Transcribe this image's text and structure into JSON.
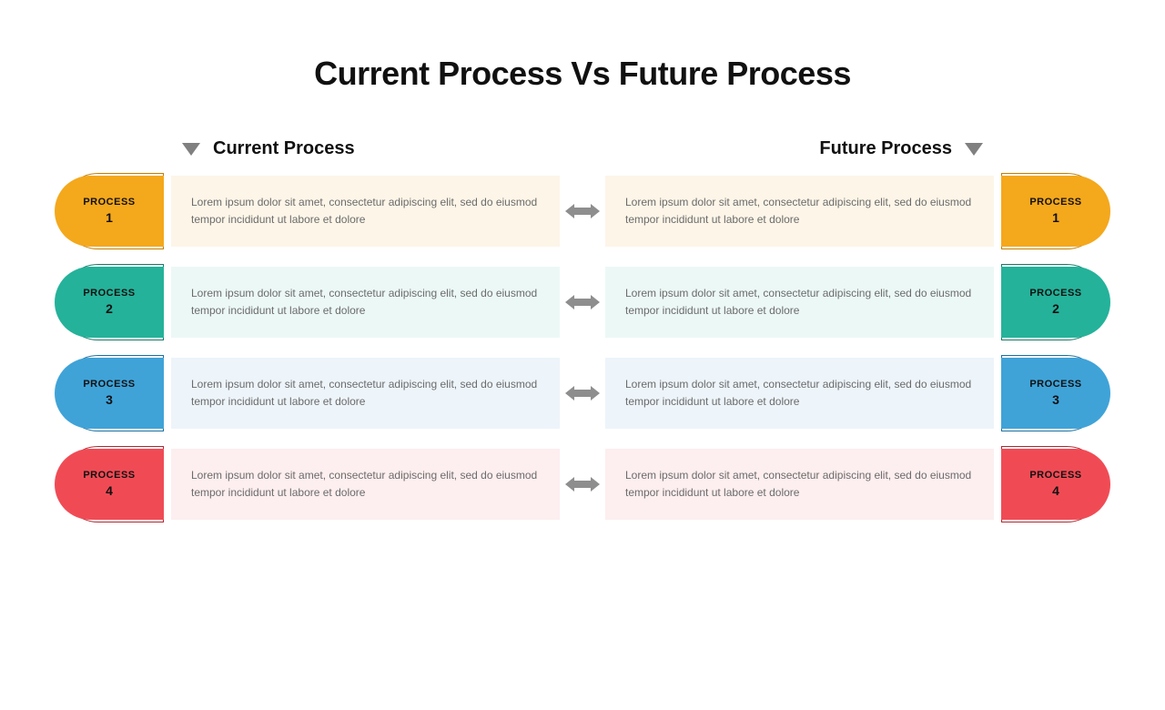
{
  "title": "Current Process Vs Future Process",
  "headers": {
    "left": "Current Process",
    "right": "Future Process"
  },
  "arrow_color": "#8e8e8e",
  "rows": [
    {
      "pill_label": "PROCESS",
      "pill_number": "1",
      "pill_color": "#f4a81c",
      "outline_color": "#c07f0a",
      "bg_tint": "#fdf5e8",
      "left_text": "Lorem ipsum dolor sit amet, consectetur adipiscing elit, sed do eiusmod tempor incididunt ut labore et dolore",
      "right_text": "Lorem ipsum dolor sit amet, consectetur adipiscing elit, sed do eiusmod tempor incididunt ut labore et dolore"
    },
    {
      "pill_label": "PROCESS",
      "pill_number": "2",
      "pill_color": "#24b29a",
      "outline_color": "#187a69",
      "bg_tint": "#ecf8f6",
      "left_text": "Lorem ipsum dolor sit amet, consectetur adipiscing elit, sed do eiusmod tempor incididunt ut labore et dolore",
      "right_text": "Lorem ipsum dolor sit amet, consectetur adipiscing elit, sed do eiusmod tempor incididunt ut labore et dolore"
    },
    {
      "pill_label": "PROCESS",
      "pill_number": "3",
      "pill_color": "#3fa3d8",
      "outline_color": "#1f6f9e",
      "bg_tint": "#edf4fa",
      "left_text": "Lorem ipsum dolor sit amet, consectetur adipiscing elit, sed do eiusmod tempor incididunt ut labore et dolore",
      "right_text": "Lorem ipsum dolor sit amet, consectetur adipiscing elit, sed do eiusmod tempor incididunt ut labore et dolore"
    },
    {
      "pill_label": "PROCESS",
      "pill_number": "4",
      "pill_color": "#f04b55",
      "outline_color": "#b02931",
      "bg_tint": "#fdeeef",
      "left_text": "Lorem ipsum dolor sit amet, consectetur adipiscing elit, sed do eiusmod tempor incididunt ut labore et dolore",
      "right_text": "Lorem ipsum dolor sit amet, consectetur adipiscing elit, sed do eiusmod tempor incididunt ut labore et dolore"
    }
  ]
}
